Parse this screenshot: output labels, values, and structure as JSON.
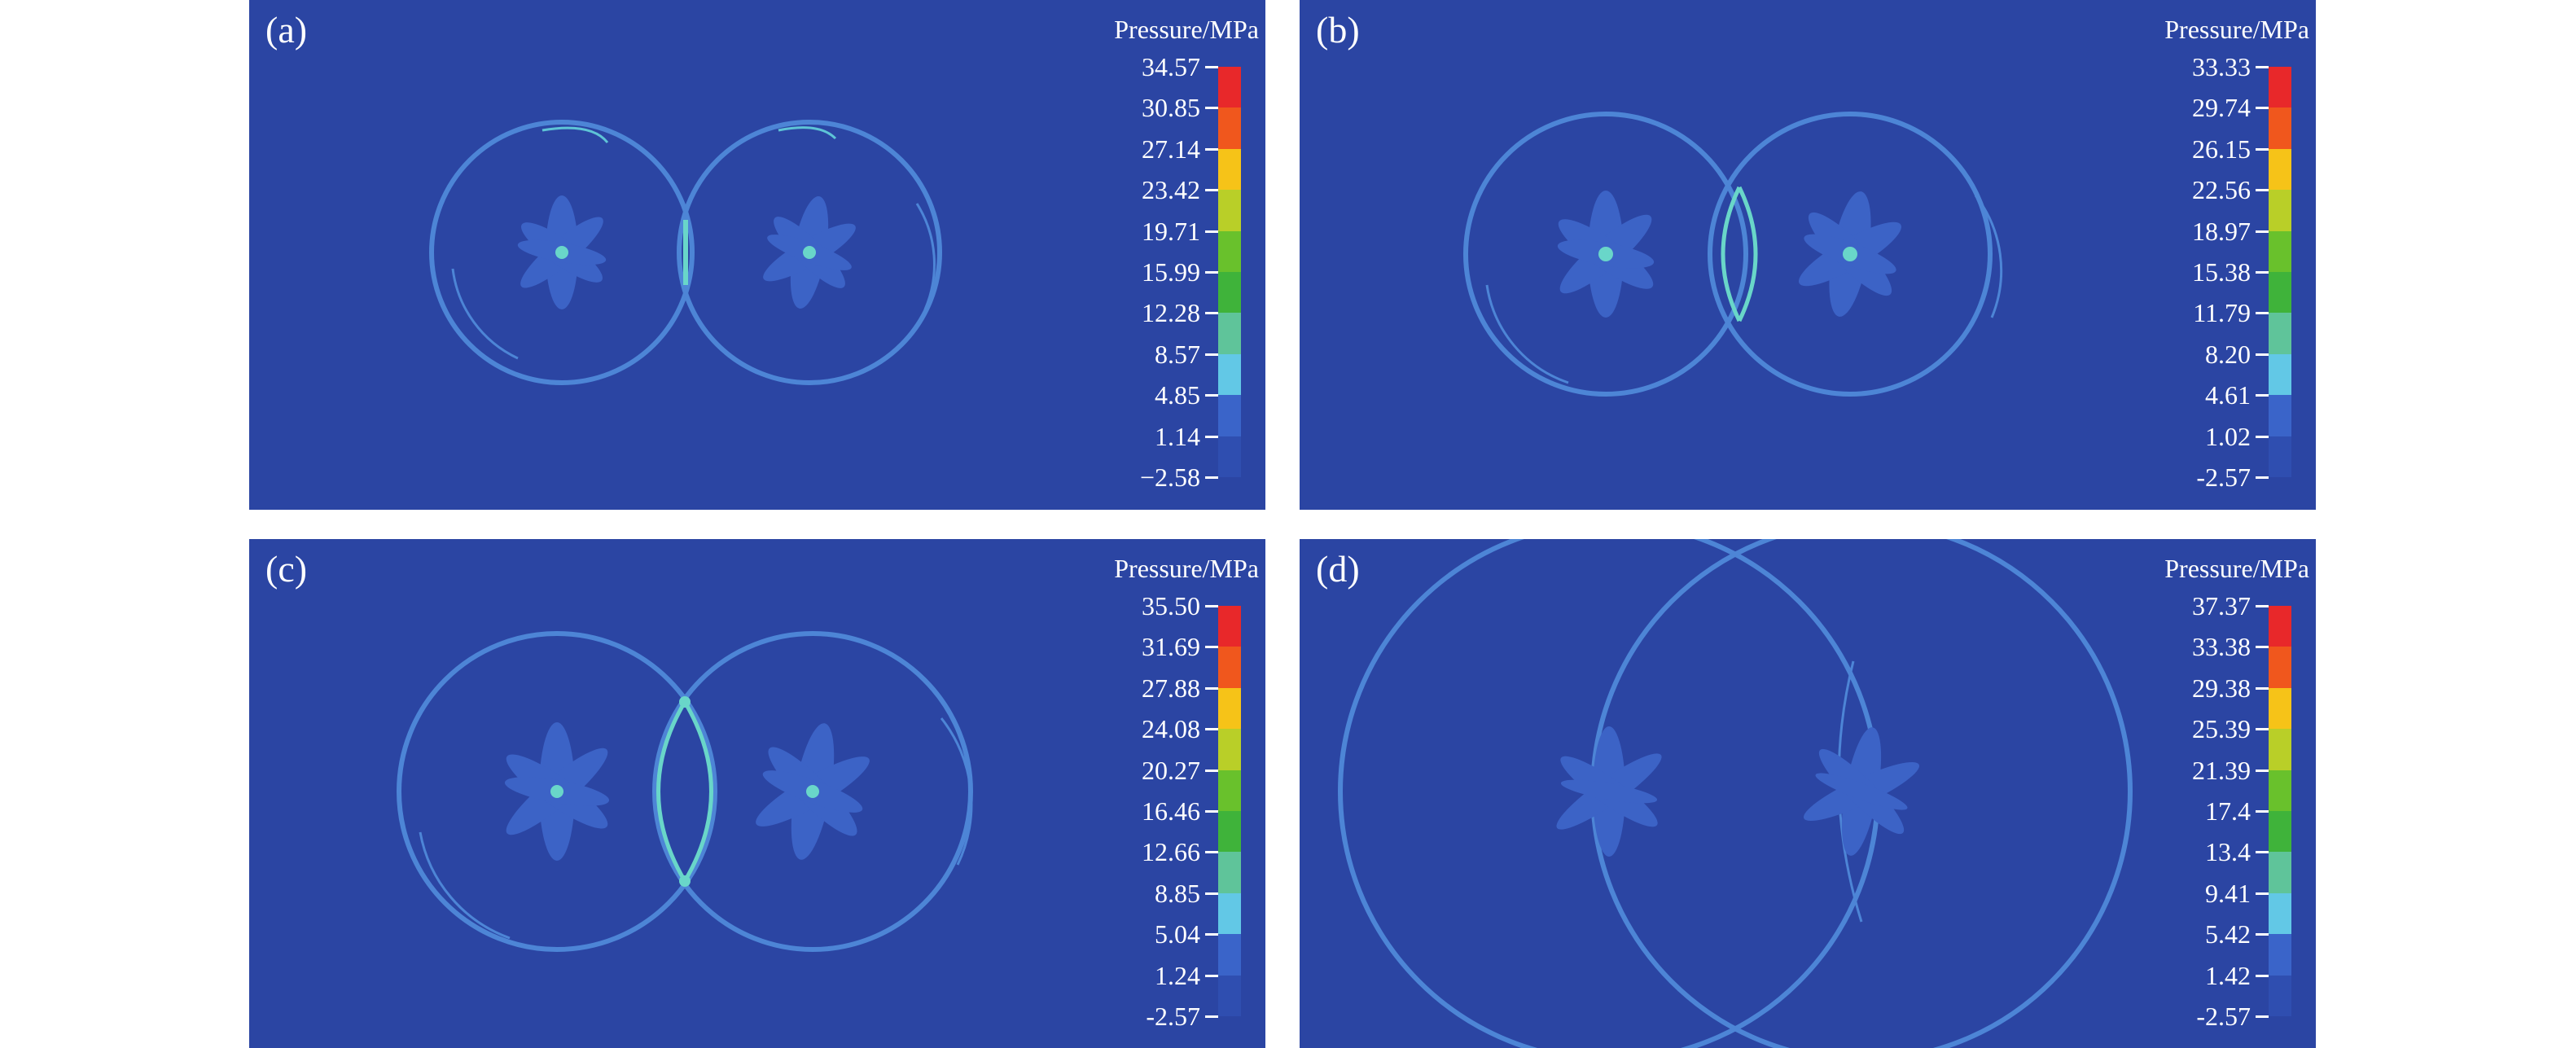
{
  "panels": [
    {
      "label": "(a)",
      "legend_title": "Pressure/MPa",
      "values": [
        "34.57",
        "30.85",
        "27.14",
        "23.42",
        "19.71",
        "15.99",
        "12.28",
        "8.57",
        "4.85",
        "1.14",
        "−2.58"
      ]
    },
    {
      "label": "(b)",
      "legend_title": "Pressure/MPa",
      "values": [
        "33.33",
        "29.74",
        "26.15",
        "22.56",
        "18.97",
        "15.38",
        "11.79",
        "8.20",
        "4.61",
        "1.02",
        "-2.57"
      ]
    },
    {
      "label": "(c)",
      "legend_title": "Pressure/MPa",
      "values": [
        "35.50",
        "31.69",
        "27.88",
        "24.08",
        "20.27",
        "16.46",
        "12.66",
        "8.85",
        "5.04",
        "1.24",
        "-2.57"
      ]
    },
    {
      "label": "(d)",
      "legend_title": "Pressure/MPa",
      "values": [
        "37.37",
        "33.38",
        "29.38",
        "25.39",
        "21.39",
        "17.4",
        "13.4",
        "9.41",
        "5.42",
        "1.42",
        "-2.57"
      ]
    }
  ],
  "colorbar": [
    "#e8282a",
    "#f0571d",
    "#f6c318",
    "#b9cf28",
    "#69c12c",
    "#3fb33a",
    "#5fc49a",
    "#62c8e6",
    "#3a64c9",
    "#2f4eb0"
  ],
  "colors": {
    "background": "#2b45a3",
    "ring": "#4d85d6",
    "hot": "#69d6c9"
  }
}
